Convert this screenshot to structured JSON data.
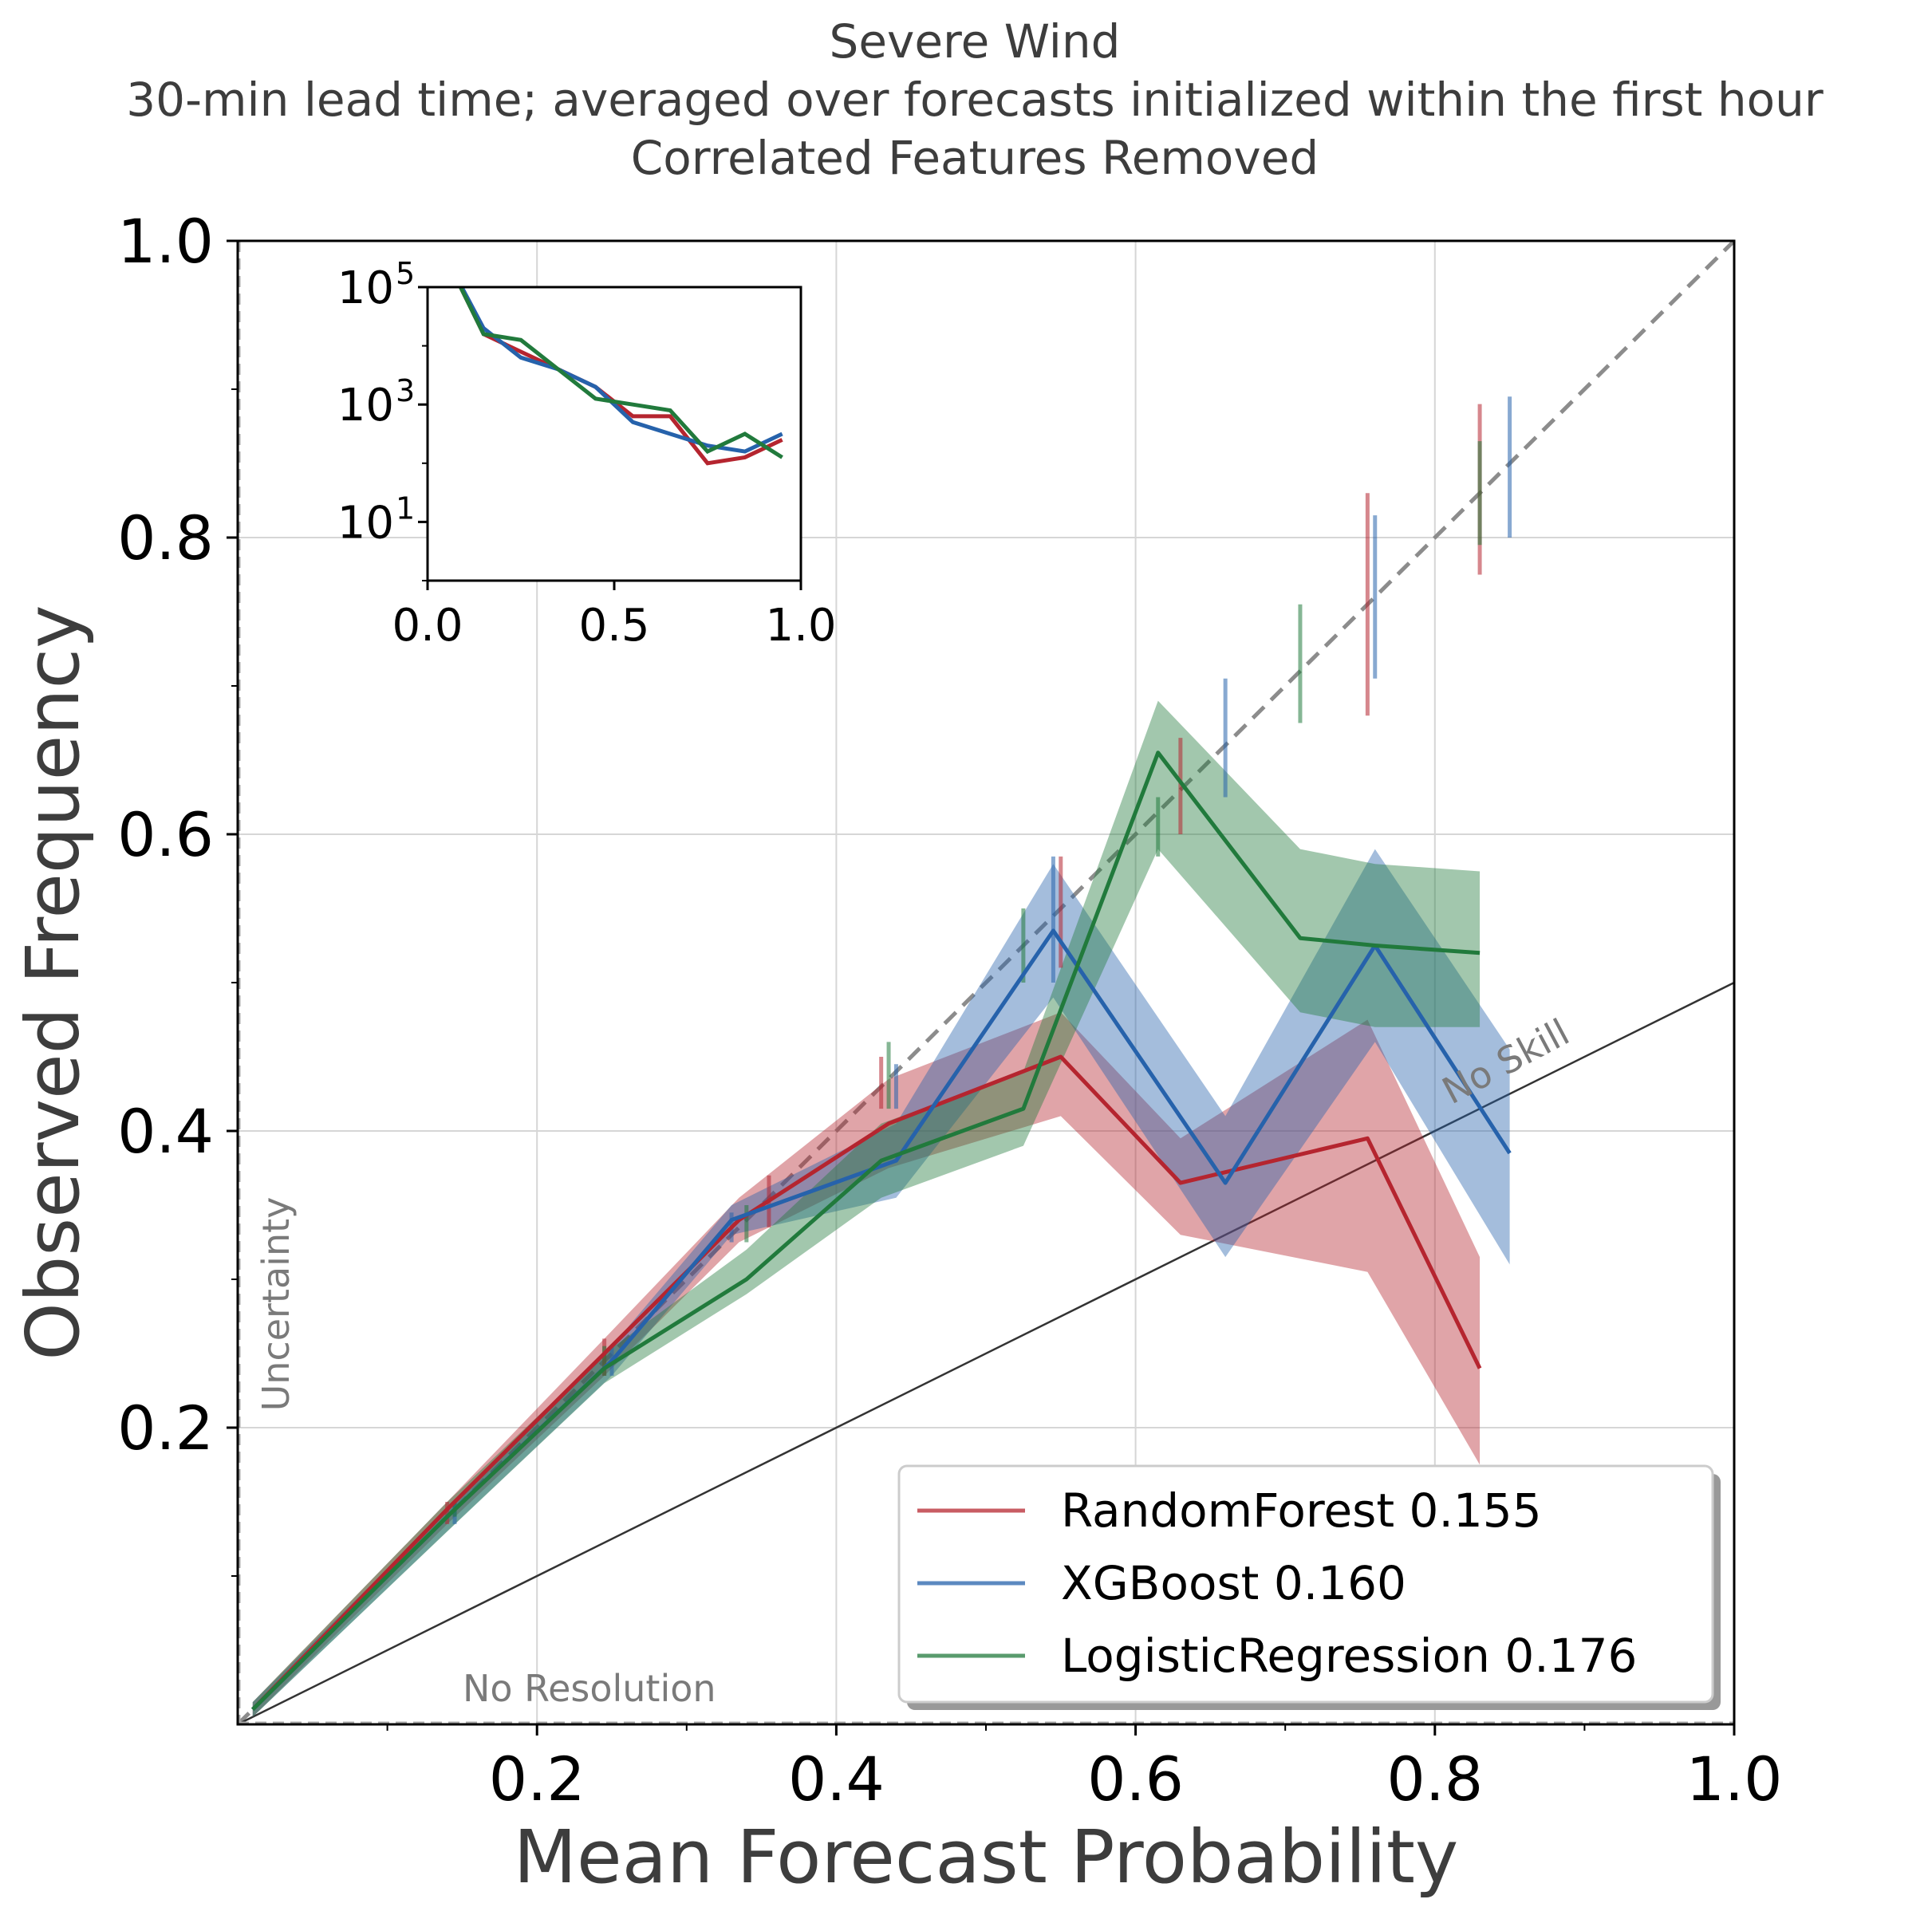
{
  "chart_data": {
    "type": "line",
    "title": "Severe Wind",
    "subtitle_lines": [
      "30-min lead time; averaged over forecasts initialized within the first hour",
      "Correlated Features Removed"
    ],
    "xlabel": "Mean Forecast Probability",
    "ylabel": "Observed Frequency",
    "xlim": [
      0,
      1
    ],
    "ylim": [
      0,
      1
    ],
    "x_ticks": [
      0.2,
      0.4,
      0.6,
      0.8,
      1.0
    ],
    "x_tick_labels": [
      "0.2",
      "0.4",
      "0.6",
      "0.8",
      "1.0"
    ],
    "y_ticks": [
      0.2,
      0.4,
      0.6,
      0.8,
      1.0
    ],
    "y_tick_labels": [
      "0.2",
      "0.4",
      "0.6",
      "0.8",
      "1.0"
    ],
    "grid": true,
    "legend_position": "lower-right",
    "annotations": {
      "no_skill": "No Skill",
      "uncertainty": "Uncertainty",
      "no_resolution": "No Resolution"
    },
    "reference_lines": {
      "perfect_reliability": {
        "x": [
          0,
          1
        ],
        "y": [
          0,
          1
        ],
        "style": "dashed",
        "color": "#8c8c8c"
      },
      "no_skill": {
        "x": [
          0,
          1
        ],
        "y": [
          0,
          0.5
        ],
        "style": "solid",
        "color": "#333333"
      },
      "no_resolution": {
        "y": 0,
        "style": "dashed",
        "color": "#aaaaaa"
      }
    },
    "series": [
      {
        "name": "RandomForest 0.155",
        "color": "#b5252f",
        "x": [
          0.01,
          0.14,
          0.245,
          0.335,
          0.435,
          0.55,
          0.63,
          0.755,
          0.83
        ],
        "y": [
          0.01,
          0.145,
          0.25,
          0.34,
          0.405,
          0.45,
          0.365,
          0.395,
          0.24
        ],
        "band_lower": [
          0.005,
          0.135,
          0.235,
          0.325,
          0.375,
          0.41,
          0.33,
          0.305,
          0.175
        ],
        "band_upper": [
          0.015,
          0.15,
          0.26,
          0.355,
          0.435,
          0.48,
          0.395,
          0.475,
          0.315
        ],
        "error_x": [
          0.14,
          0.245,
          0.355,
          0.43,
          0.55,
          0.63,
          0.755,
          0.83
        ],
        "error_lo": [
          0.135,
          0.235,
          0.335,
          0.415,
          0.51,
          0.6,
          0.68,
          0.775
        ],
        "error_hi": [
          0.15,
          0.26,
          0.37,
          0.45,
          0.585,
          0.665,
          0.83,
          0.89
        ]
      },
      {
        "name": "XGBoost 0.160",
        "color": "#2662ab",
        "x": [
          0.01,
          0.145,
          0.25,
          0.33,
          0.44,
          0.545,
          0.66,
          0.76,
          0.85
        ],
        "y": [
          0.01,
          0.145,
          0.245,
          0.34,
          0.38,
          0.535,
          0.365,
          0.525,
          0.385
        ],
        "band_lower": [
          0.005,
          0.135,
          0.235,
          0.33,
          0.355,
          0.49,
          0.315,
          0.46,
          0.31
        ],
        "band_upper": [
          0.015,
          0.15,
          0.255,
          0.35,
          0.405,
          0.58,
          0.41,
          0.59,
          0.455
        ],
        "error_x": [
          0.145,
          0.25,
          0.33,
          0.44,
          0.545,
          0.66,
          0.76,
          0.85
        ],
        "error_lo": [
          0.135,
          0.235,
          0.325,
          0.415,
          0.5,
          0.625,
          0.705,
          0.8
        ],
        "error_hi": [
          0.15,
          0.255,
          0.345,
          0.445,
          0.585,
          0.705,
          0.815,
          0.895
        ]
      },
      {
        "name": "LogisticRegression 0.176",
        "color": "#217a3c",
        "x": [
          0.01,
          0.14,
          0.245,
          0.34,
          0.43,
          0.525,
          0.615,
          0.71,
          0.76,
          0.83
        ],
        "y": [
          0.01,
          0.14,
          0.24,
          0.3,
          0.38,
          0.415,
          0.655,
          0.53,
          0.525,
          0.52
        ],
        "band_lower": [
          0.005,
          0.13,
          0.23,
          0.29,
          0.355,
          0.39,
          0.59,
          0.48,
          0.47,
          0.47
        ],
        "band_upper": [
          0.015,
          0.15,
          0.25,
          0.32,
          0.405,
          0.44,
          0.69,
          0.59,
          0.58,
          0.575
        ],
        "error_x": [
          0.145,
          0.245,
          0.34,
          0.435,
          0.525,
          0.615,
          0.71,
          0.83
        ],
        "error_lo": [
          0.14,
          0.235,
          0.325,
          0.415,
          0.5,
          0.585,
          0.675,
          0.795
        ],
        "error_hi": [
          0.15,
          0.255,
          0.35,
          0.46,
          0.55,
          0.625,
          0.755,
          0.865
        ]
      }
    ],
    "inset": {
      "type": "line",
      "y_scale": "log",
      "xlim": [
        0,
        1
      ],
      "ylim_exponent": [
        0,
        5
      ],
      "x_ticks": [
        0.0,
        0.5,
        1.0
      ],
      "x_tick_labels": [
        "0.0",
        "0.5",
        "1.0"
      ],
      "y_ticks_exponent": [
        1,
        3,
        5
      ],
      "y_tick_base": "10",
      "y_tick_exponents": [
        "1",
        "3",
        "5"
      ],
      "series": [
        {
          "name": "RandomForest",
          "color": "#b5252f",
          "x": [
            0.05,
            0.15,
            0.25,
            0.35,
            0.45,
            0.55,
            0.65,
            0.75,
            0.85,
            0.95
          ],
          "log10_count": [
            5.5,
            4.2,
            3.9,
            3.6,
            3.3,
            2.8,
            2.8,
            2.0,
            2.1,
            2.4
          ]
        },
        {
          "name": "XGBoost",
          "color": "#2662ab",
          "x": [
            0.05,
            0.15,
            0.25,
            0.35,
            0.45,
            0.55,
            0.65,
            0.75,
            0.85,
            0.95
          ],
          "log10_count": [
            5.5,
            4.3,
            3.8,
            3.6,
            3.3,
            2.7,
            2.5,
            2.3,
            2.2,
            2.5
          ]
        },
        {
          "name": "LogisticRegression",
          "color": "#217a3c",
          "x": [
            0.05,
            0.15,
            0.25,
            0.35,
            0.45,
            0.55,
            0.65,
            0.75,
            0.85,
            0.95
          ],
          "log10_count": [
            5.5,
            4.2,
            4.1,
            3.6,
            3.1,
            3.0,
            2.9,
            2.2,
            2.5,
            2.1
          ]
        }
      ]
    }
  }
}
